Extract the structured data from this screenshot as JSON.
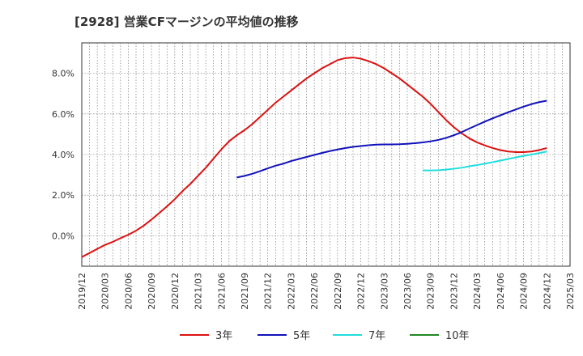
{
  "chart_data": {
    "type": "line",
    "title": "[2928]  営業CFマージンの平均値の推移",
    "xlabel": "",
    "ylabel": "",
    "x_ticks": [
      "2019/12",
      "2020/03",
      "2020/06",
      "2020/09",
      "2020/12",
      "2021/03",
      "2021/06",
      "2021/09",
      "2021/12",
      "2022/03",
      "2022/06",
      "2022/09",
      "2022/12",
      "2023/03",
      "2023/06",
      "2023/09",
      "2023/12",
      "2024/03",
      "2024/06",
      "2024/09",
      "2024/12",
      "2025/03"
    ],
    "y_ticks": [
      0.0,
      2.0,
      4.0,
      6.0,
      8.0
    ],
    "y_tick_labels": [
      "0.0%",
      "2.0%",
      "4.0%",
      "6.0%",
      "8.0%"
    ],
    "ylim": [
      -1.5,
      9.5
    ],
    "grid": true,
    "legend_position": "bottom",
    "series": [
      {
        "name": "3年",
        "color": "#dd1111",
        "points": [
          [
            "2019/12",
            -1.05
          ],
          [
            "2020/01",
            -0.85
          ],
          [
            "2020/02",
            -0.65
          ],
          [
            "2020/03",
            -0.45
          ],
          [
            "2020/04",
            -0.3
          ],
          [
            "2020/05",
            -0.12
          ],
          [
            "2020/06",
            0.05
          ],
          [
            "2020/07",
            0.25
          ],
          [
            "2020/08",
            0.5
          ],
          [
            "2020/09",
            0.8
          ],
          [
            "2020/10",
            1.12
          ],
          [
            "2020/11",
            1.45
          ],
          [
            "2020/12",
            1.8
          ],
          [
            "2020/13",
            2.2
          ],
          [
            "2021/02",
            2.55
          ],
          [
            "2021/03",
            2.95
          ],
          [
            "2021/04",
            3.35
          ],
          [
            "2021/05",
            3.8
          ],
          [
            "2021/06",
            4.25
          ],
          [
            "2021/07",
            4.65
          ],
          [
            "2021/08",
            4.95
          ],
          [
            "2021/09",
            5.2
          ],
          [
            "2021/10",
            5.5
          ],
          [
            "2021/11",
            5.85
          ],
          [
            "2021/12",
            6.2
          ],
          [
            "2022/01",
            6.55
          ],
          [
            "2022/02",
            6.85
          ],
          [
            "2022/03",
            7.15
          ],
          [
            "2022/04",
            7.45
          ],
          [
            "2022/05",
            7.75
          ],
          [
            "2022/06",
            8.0
          ],
          [
            "2022/07",
            8.25
          ],
          [
            "2022/08",
            8.45
          ],
          [
            "2022/09",
            8.65
          ],
          [
            "2022/10",
            8.75
          ],
          [
            "2022/11",
            8.78
          ],
          [
            "2022/12",
            8.72
          ],
          [
            "2023/01",
            8.6
          ],
          [
            "2023/02",
            8.45
          ],
          [
            "2023/03",
            8.25
          ],
          [
            "2023/04",
            8.0
          ],
          [
            "2023/05",
            7.75
          ],
          [
            "2023/06",
            7.45
          ],
          [
            "2023/07",
            7.15
          ],
          [
            "2023/08",
            6.85
          ],
          [
            "2023/09",
            6.5
          ],
          [
            "2023/10",
            6.1
          ],
          [
            "2023/11",
            5.7
          ],
          [
            "2023/12",
            5.35
          ],
          [
            "2024/01",
            5.05
          ],
          [
            "2024/02",
            4.8
          ],
          [
            "2024/03",
            4.6
          ],
          [
            "2024/04",
            4.45
          ],
          [
            "2024/05",
            4.32
          ],
          [
            "2024/06",
            4.22
          ],
          [
            "2024/07",
            4.15
          ],
          [
            "2024/08",
            4.12
          ],
          [
            "2024/09",
            4.12
          ],
          [
            "2024/10",
            4.15
          ],
          [
            "2024/11",
            4.22
          ],
          [
            "2024/12",
            4.32
          ]
        ]
      },
      {
        "name": "5年",
        "color": "#1111bb",
        "points": [
          [
            "2021/08",
            2.87
          ],
          [
            "2021/09",
            2.95
          ],
          [
            "2021/10",
            3.05
          ],
          [
            "2021/11",
            3.18
          ],
          [
            "2021/12",
            3.32
          ],
          [
            "2022/01",
            3.45
          ],
          [
            "2022/02",
            3.55
          ],
          [
            "2022/03",
            3.68
          ],
          [
            "2022/04",
            3.78
          ],
          [
            "2022/05",
            3.88
          ],
          [
            "2022/06",
            3.98
          ],
          [
            "2022/07",
            4.08
          ],
          [
            "2022/08",
            4.17
          ],
          [
            "2022/09",
            4.25
          ],
          [
            "2022/10",
            4.32
          ],
          [
            "2022/11",
            4.38
          ],
          [
            "2022/12",
            4.42
          ],
          [
            "2023/01",
            4.46
          ],
          [
            "2023/02",
            4.49
          ],
          [
            "2023/03",
            4.5
          ],
          [
            "2023/04",
            4.5
          ],
          [
            "2023/05",
            4.51
          ],
          [
            "2023/06",
            4.53
          ],
          [
            "2023/07",
            4.56
          ],
          [
            "2023/08",
            4.6
          ],
          [
            "2023/09",
            4.65
          ],
          [
            "2023/10",
            4.72
          ],
          [
            "2023/11",
            4.82
          ],
          [
            "2023/12",
            4.95
          ],
          [
            "2024/01",
            5.1
          ],
          [
            "2024/02",
            5.28
          ],
          [
            "2024/03",
            5.45
          ],
          [
            "2024/04",
            5.62
          ],
          [
            "2024/05",
            5.78
          ],
          [
            "2024/06",
            5.93
          ],
          [
            "2024/07",
            6.08
          ],
          [
            "2024/08",
            6.22
          ],
          [
            "2024/09",
            6.36
          ],
          [
            "2024/10",
            6.48
          ],
          [
            "2024/11",
            6.58
          ],
          [
            "2024/12",
            6.65
          ]
        ]
      },
      {
        "name": "7年",
        "color": "#22dddd",
        "points": [
          [
            "2023/08",
            3.22
          ],
          [
            "2023/09",
            3.22
          ],
          [
            "2023/10",
            3.23
          ],
          [
            "2023/11",
            3.26
          ],
          [
            "2023/12",
            3.3
          ],
          [
            "2024/01",
            3.35
          ],
          [
            "2024/02",
            3.42
          ],
          [
            "2024/03",
            3.48
          ],
          [
            "2024/04",
            3.55
          ],
          [
            "2024/05",
            3.62
          ],
          [
            "2024/06",
            3.7
          ],
          [
            "2024/07",
            3.78
          ],
          [
            "2024/08",
            3.86
          ],
          [
            "2024/09",
            3.93
          ],
          [
            "2024/10",
            4.0
          ],
          [
            "2024/11",
            4.07
          ],
          [
            "2024/12",
            4.15
          ]
        ]
      },
      {
        "name": "10年",
        "color": "#228822",
        "points": []
      }
    ]
  }
}
